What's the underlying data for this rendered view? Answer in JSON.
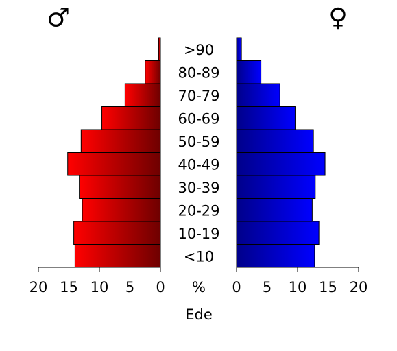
{
  "chart_data": {
    "type": "pyramid",
    "categories": [
      "<10",
      "10-19",
      "20-29",
      "30-39",
      "40-49",
      "50-59",
      "60-69",
      "70-79",
      "80-89",
      ">90"
    ],
    "series": [
      {
        "name": "♂",
        "color": "#ff0000",
        "values": [
          14.0,
          14.2,
          12.8,
          13.3,
          15.2,
          13.0,
          9.6,
          5.8,
          2.5,
          0.3
        ]
      },
      {
        "name": "♀",
        "color": "#0000ff",
        "values": [
          12.8,
          13.5,
          12.4,
          12.9,
          14.5,
          12.6,
          9.6,
          7.1,
          4.0,
          0.8
        ]
      }
    ],
    "xlim": [
      0,
      20
    ],
    "xticks": [
      0,
      5,
      10,
      15,
      20
    ],
    "unit_label": "%",
    "xlabel": "Ede"
  }
}
